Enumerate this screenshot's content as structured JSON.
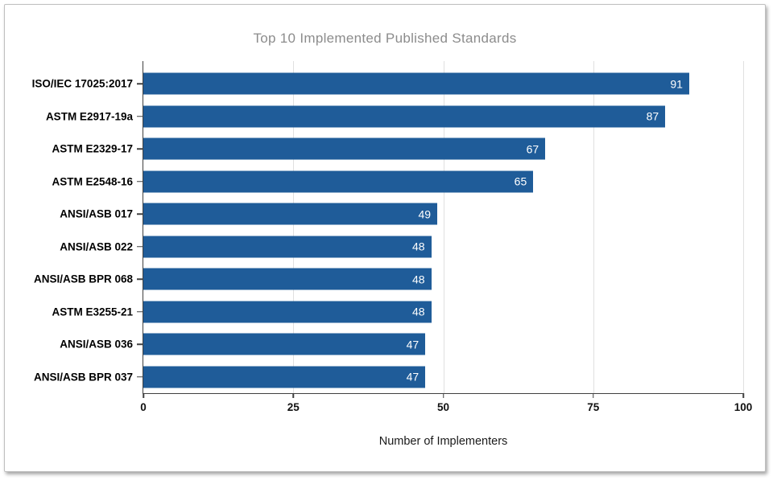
{
  "chart_data": {
    "type": "bar",
    "orientation": "horizontal",
    "title": "Top 10 Implemented Published Standards",
    "xlabel": "Number of Implementers",
    "ylabel": "",
    "categories": [
      "ISO/IEC 17025:2017",
      "ASTM E2917-19a",
      "ASTM E2329-17",
      "ASTM E2548-16",
      "ANSI/ASB 017",
      "ANSI/ASB 022",
      "ANSI/ASB BPR 068",
      "ASTM E3255-21",
      "ANSI/ASB 036",
      "ANSI/ASB BPR 037"
    ],
    "values": [
      91,
      87,
      67,
      65,
      49,
      48,
      48,
      48,
      47,
      47
    ],
    "xlim": [
      0,
      100
    ],
    "xticks": [
      0,
      25,
      50,
      75,
      100
    ],
    "grid": true,
    "legend": false,
    "colors": {
      "bar": "#1f5c99",
      "value_label": "#ffffff",
      "title": "#8c8c8c",
      "axis": "#404040",
      "gridline": "#e0e0e0"
    }
  }
}
